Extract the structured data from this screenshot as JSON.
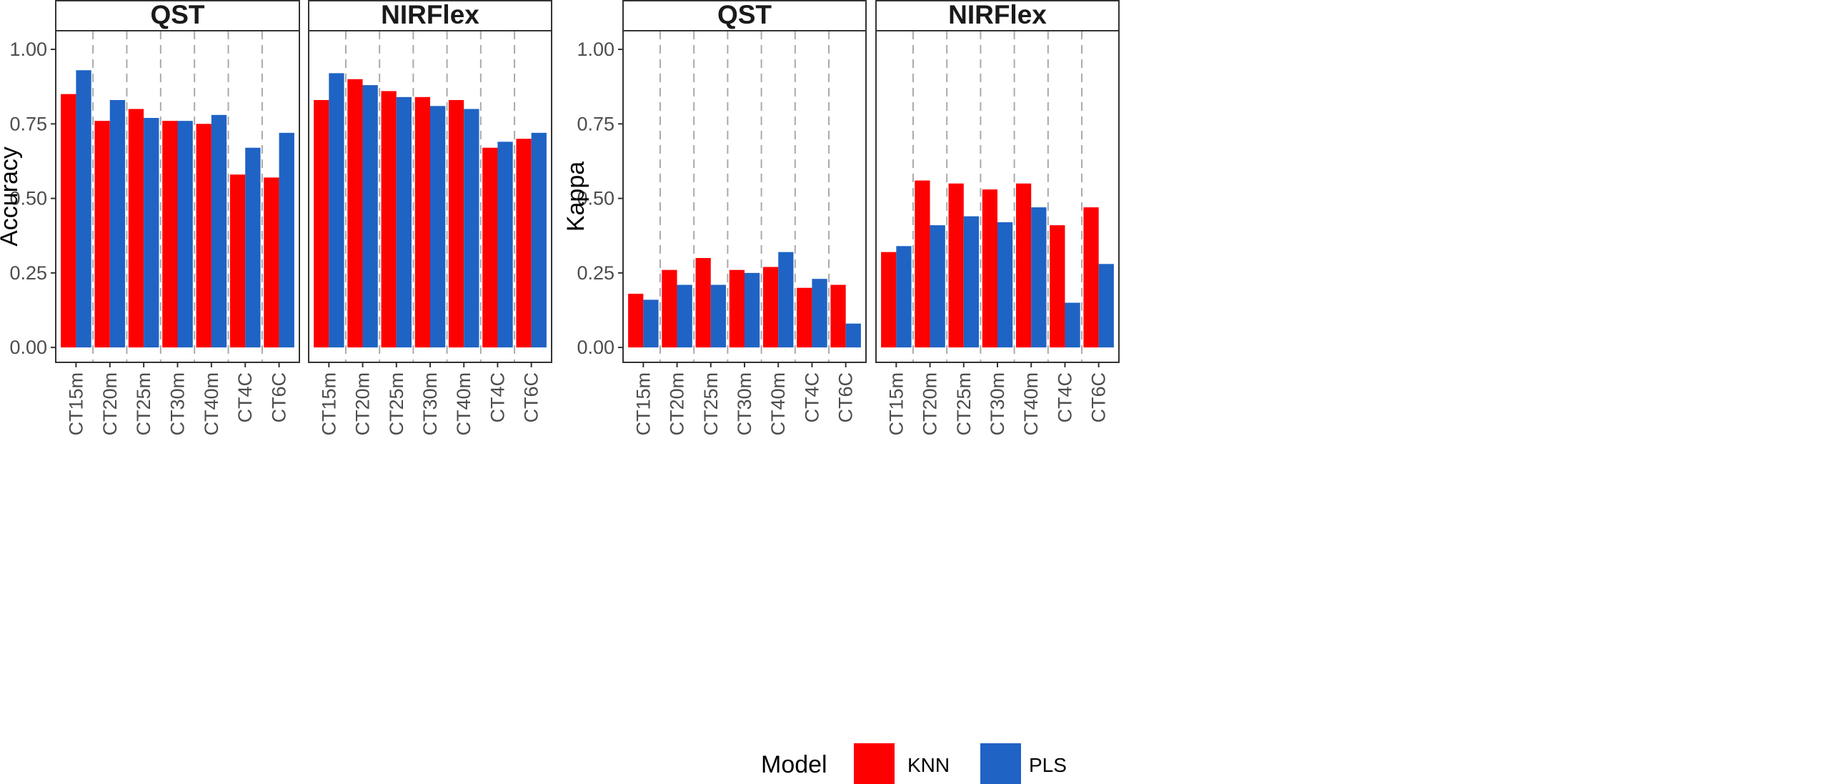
{
  "chart_data": [
    {
      "type": "bar",
      "ylabel": "Accuracy",
      "xlabel": "",
      "ylim": [
        -0.05,
        1.0625
      ],
      "yticks": [
        0.0,
        0.25,
        0.5,
        0.75,
        1.0
      ],
      "ytick_labels": [
        "0.00",
        "0.25",
        "0.50",
        "0.75",
        "1.00"
      ],
      "grid": false,
      "categories": [
        "CT15m",
        "CT20m",
        "CT25m",
        "CT30m",
        "CT40m",
        "CT4C",
        "CT6C"
      ],
      "facets": [
        {
          "title": "QST",
          "series": [
            {
              "name": "KNN",
              "values": [
                0.85,
                0.76,
                0.8,
                0.76,
                0.75,
                0.58,
                0.57
              ]
            },
            {
              "name": "PLS",
              "values": [
                0.93,
                0.83,
                0.77,
                0.76,
                0.78,
                0.67,
                0.72
              ]
            }
          ]
        },
        {
          "title": "NIRFlex",
          "series": [
            {
              "name": "KNN",
              "values": [
                0.83,
                0.9,
                0.86,
                0.84,
                0.83,
                0.67,
                0.7
              ]
            },
            {
              "name": "PLS",
              "values": [
                0.92,
                0.88,
                0.84,
                0.81,
                0.8,
                0.69,
                0.72
              ]
            }
          ]
        }
      ]
    },
    {
      "type": "bar",
      "ylabel": "Kappa",
      "xlabel": "",
      "ylim": [
        -0.05,
        1.0625
      ],
      "yticks": [
        0.0,
        0.25,
        0.5,
        0.75,
        1.0
      ],
      "ytick_labels": [
        "0.00",
        "0.25",
        "0.50",
        "0.75",
        "1.00"
      ],
      "grid": false,
      "categories": [
        "CT15m",
        "CT20m",
        "CT25m",
        "CT30m",
        "CT40m",
        "CT4C",
        "CT6C"
      ],
      "facets": [
        {
          "title": "QST",
          "series": [
            {
              "name": "KNN",
              "values": [
                0.18,
                0.26,
                0.3,
                0.26,
                0.27,
                0.2,
                0.21
              ]
            },
            {
              "name": "PLS",
              "values": [
                0.16,
                0.21,
                0.21,
                0.25,
                0.32,
                0.23,
                0.08
              ]
            }
          ]
        },
        {
          "title": "NIRFlex",
          "series": [
            {
              "name": "KNN",
              "values": [
                0.32,
                0.56,
                0.55,
                0.53,
                0.55,
                0.41,
                0.47
              ]
            },
            {
              "name": "PLS",
              "values": [
                0.34,
                0.41,
                0.44,
                0.42,
                0.47,
                0.15,
                0.28
              ]
            }
          ]
        }
      ]
    }
  ],
  "legend": {
    "title": "Model",
    "placement": "bottom",
    "items": [
      {
        "label": "KNN",
        "color": "#ff0000"
      },
      {
        "label": "PLS",
        "color": "#1f63c4"
      }
    ]
  },
  "colors": {
    "KNN": "#ff0000",
    "PLS": "#1f63c4",
    "strip_bg": "#ffffff",
    "panel_border": "#333333",
    "separator": "#aaaaaa"
  }
}
